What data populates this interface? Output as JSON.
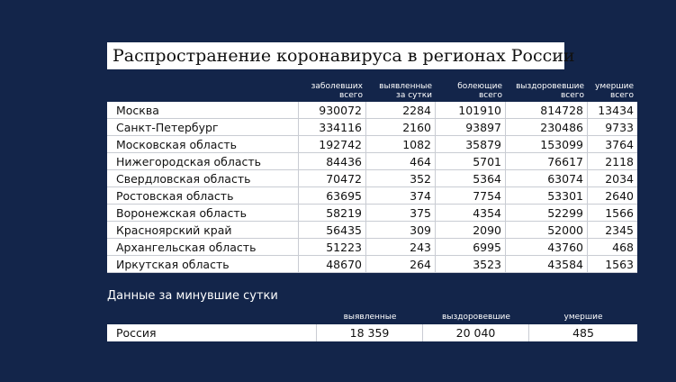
{
  "header": {
    "title": "Распространение коронавируса в регионах России"
  },
  "table": {
    "headers": [
      [
        "заболевших",
        "всего"
      ],
      [
        "выявленные",
        "за сутки"
      ],
      [
        "болеющие",
        "всего"
      ],
      [
        "выздоровевшие",
        "всего"
      ],
      [
        "умершие",
        "всего"
      ]
    ],
    "rows": [
      [
        "Москва",
        930072,
        2284,
        101910,
        814728,
        13434
      ],
      [
        "Санкт-Петербург",
        334116,
        2160,
        93897,
        230486,
        9733
      ],
      [
        "Московская область",
        192742,
        1082,
        35879,
        153099,
        3764
      ],
      [
        "Нижегородская область",
        84436,
        464,
        5701,
        76617,
        2118
      ],
      [
        "Свердловская область",
        70472,
        352,
        5364,
        63074,
        2034
      ],
      [
        "Ростовская область",
        63695,
        374,
        7754,
        53301,
        2640
      ],
      [
        "Воронежская область",
        58219,
        375,
        4354,
        52299,
        1566
      ],
      [
        "Красноярский край",
        56435,
        309,
        2090,
        52000,
        2345
      ],
      [
        "Архангельская область",
        51223,
        243,
        6995,
        43760,
        468
      ],
      [
        "Иркутская область",
        48670,
        264,
        3523,
        43584,
        1563
      ]
    ]
  },
  "daily": {
    "title": "Данные за минувшие сутки",
    "headers": [
      "выявленные",
      "выздоровевшие",
      "умершие"
    ],
    "row": [
      "Россия",
      "18 359",
      "20 040",
      485
    ]
  }
}
